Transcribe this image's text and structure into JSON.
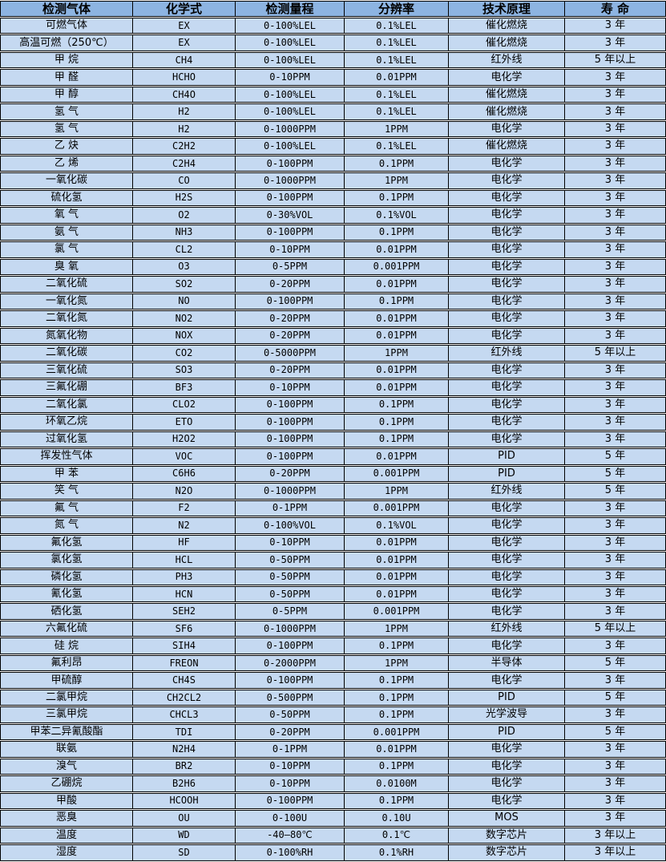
{
  "colors": {
    "header_bg": "#8DB4E2",
    "row_bg": "#C5D9F1",
    "border": "#000000",
    "gap": "#FFFFFF"
  },
  "table": {
    "headers": [
      "检测气体",
      "化学式",
      "检测量程",
      "分辨率",
      "技术原理",
      "寿 命"
    ],
    "header_keys": [
      "gas-name",
      "chemical-formula",
      "detection-range",
      "resolution",
      "technology-principle",
      "lifespan"
    ],
    "rows": [
      [
        "可燃气体",
        "EX",
        "0-100%LEL",
        "0.1%LEL",
        "催化燃烧",
        "3 年"
      ],
      [
        "高温可燃（250℃）",
        "EX",
        "0-100%LEL",
        "0.1%LEL",
        "催化燃烧",
        "3 年"
      ],
      [
        "甲 烷",
        "CH4",
        "0-100%LEL",
        "0.1%LEL",
        "红外线",
        "5 年以上"
      ],
      [
        "甲 醛",
        "HCHO",
        "0-10PPM",
        "0.01PPM",
        "电化学",
        "3 年"
      ],
      [
        "甲 醇",
        "CH4O",
        "0-100%LEL",
        "0.1%LEL",
        "催化燃烧",
        "3 年"
      ],
      [
        "氢 气",
        "H2",
        "0-100%LEL",
        "0.1%LEL",
        "催化燃烧",
        "3 年"
      ],
      [
        "氢 气",
        "H2",
        "0-1000PPM",
        "1PPM",
        "电化学",
        "3 年"
      ],
      [
        "乙 炔",
        "C2H2",
        "0-100%LEL",
        "0.1%LEL",
        "催化燃烧",
        "3 年"
      ],
      [
        "乙 烯",
        "C2H4",
        "0-100PPM",
        "0.1PPM",
        "电化学",
        "3 年"
      ],
      [
        "一氧化碳",
        "CO",
        "0-1000PPM",
        "1PPM",
        "电化学",
        "3 年"
      ],
      [
        "硫化氢",
        "H2S",
        "0-100PPM",
        "0.1PPM",
        "电化学",
        "3 年"
      ],
      [
        "氧 气",
        "O2",
        "0-30%VOL",
        "0.1%VOL",
        "电化学",
        "3 年"
      ],
      [
        "氨 气",
        "NH3",
        "0-100PPM",
        "0.1PPM",
        "电化学",
        "3 年"
      ],
      [
        "氯 气",
        "CL2",
        "0-10PPM",
        "0.01PPM",
        "电化学",
        "3 年"
      ],
      [
        "臭 氧",
        "O3",
        "0-5PPM",
        "0.001PPM",
        "电化学",
        "3 年"
      ],
      [
        "二氧化硫",
        "SO2",
        "0-20PPM",
        "0.01PPM",
        "电化学",
        "3 年"
      ],
      [
        "一氧化氮",
        "NO",
        "0-100PPM",
        "0.1PPM",
        "电化学",
        "3 年"
      ],
      [
        "二氧化氮",
        "NO2",
        "0-20PPM",
        "0.01PPM",
        "电化学",
        "3 年"
      ],
      [
        "氮氧化物",
        "NOX",
        "0-20PPM",
        "0.01PPM",
        "电化学",
        "3 年"
      ],
      [
        "二氧化碳",
        "CO2",
        "0-5000PPM",
        "1PPM",
        "红外线",
        "5 年以上"
      ],
      [
        "三氧化硫",
        "SO3",
        "0-20PPM",
        "0.01PPM",
        "电化学",
        "3 年"
      ],
      [
        "三氟化硼",
        "BF3",
        "0-10PPM",
        "0.01PPM",
        "电化学",
        "3 年"
      ],
      [
        "二氧化氯",
        "CLO2",
        "0-100PPM",
        "0.1PPM",
        "电化学",
        "3 年"
      ],
      [
        "环氧乙烷",
        "ETO",
        "0-100PPM",
        "0.1PPM",
        "电化学",
        "3 年"
      ],
      [
        "过氧化氢",
        "H2O2",
        "0-100PPM",
        "0.1PPM",
        "电化学",
        "3 年"
      ],
      [
        "挥发性气体",
        "VOC",
        "0-100PPM",
        "0.01PPM",
        "PID",
        "5 年"
      ],
      [
        "甲 苯",
        "C6H6",
        "0-20PPM",
        "0.001PPM",
        "PID",
        "5 年"
      ],
      [
        "笑 气",
        "N2O",
        "0-1000PPM",
        "1PPM",
        "红外线",
        "5 年"
      ],
      [
        "氟 气",
        "F2",
        "0-1PPM",
        "0.001PPM",
        "电化学",
        "3 年"
      ],
      [
        "氮 气",
        "N2",
        "0-100%VOL",
        "0.1%VOL",
        "电化学",
        "3 年"
      ],
      [
        "氟化氢",
        "HF",
        "0-10PPM",
        "0.01PPM",
        "电化学",
        "3 年"
      ],
      [
        "氯化氢",
        "HCL",
        "0-50PPM",
        "0.01PPM",
        "电化学",
        "3 年"
      ],
      [
        "磷化氢",
        "PH3",
        "0-50PPM",
        "0.01PPM",
        "电化学",
        "3 年"
      ],
      [
        "氰化氢",
        "HCN",
        "0-50PPM",
        "0.01PPM",
        "电化学",
        "3 年"
      ],
      [
        "硒化氢",
        "SEH2",
        "0-5PPM",
        "0.001PPM",
        "电化学",
        "3 年"
      ],
      [
        "六氟化硫",
        "SF6",
        "0-1000PPM",
        "1PPM",
        "红外线",
        "5 年以上"
      ],
      [
        "硅 烷",
        "SIH4",
        "0-100PPM",
        "0.1PPM",
        "电化学",
        "3 年"
      ],
      [
        "氟利昂",
        "FREON",
        "0-2000PPM",
        "1PPM",
        "半导体",
        "5 年"
      ],
      [
        "甲硫醇",
        "CH4S",
        "0-100PPM",
        "0.1PPM",
        "电化学",
        "3 年"
      ],
      [
        "二氯甲烷",
        "CH2CL2",
        "0-500PPM",
        "0.1PPM",
        "PID",
        "5 年"
      ],
      [
        "三氯甲烷",
        "CHCL3",
        "0-50PPM",
        "0.1PPM",
        "光学波导",
        "3 年"
      ],
      [
        "甲苯二异氰酸酯",
        "TDI",
        "0-20PPM",
        "0.001PPM",
        "PID",
        "5 年"
      ],
      [
        "联氨",
        "N2H4",
        "0-1PPM",
        "0.01PPM",
        "电化学",
        "3 年"
      ],
      [
        "溴气",
        "BR2",
        "0-10PPM",
        "0.1PPM",
        "电化学",
        "3 年"
      ],
      [
        "乙硼烷",
        "B2H6",
        "0-10PPM",
        "0.0100M",
        "电化学",
        "3 年"
      ],
      [
        "甲酸",
        "HCOOH",
        "0-100PPM",
        "0.1PPM",
        "电化学",
        "3 年"
      ],
      [
        "恶臭",
        "OU",
        "0-100U",
        "0.10U",
        "MOS",
        "3 年"
      ],
      [
        "温度",
        "WD",
        "-40—80℃",
        "0.1℃",
        "数字芯片",
        "3 年以上"
      ],
      [
        "湿度",
        "SD",
        "0-100%RH",
        "0.1%RH",
        "数字芯片",
        "3 年以上"
      ]
    ]
  }
}
